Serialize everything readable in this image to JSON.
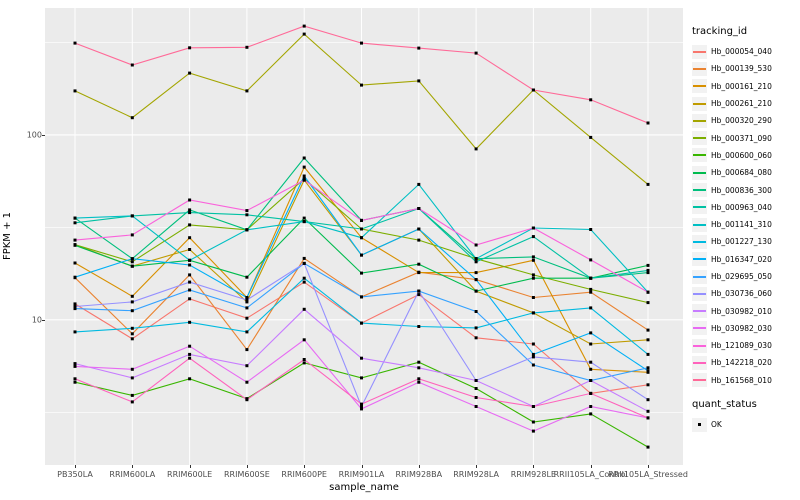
{
  "chart_data": {
    "type": "line",
    "title": "",
    "xlabel": "sample_name",
    "ylabel": "FPKM + 1",
    "y_scale": "log10",
    "ylim": [
      1.64,
      486
    ],
    "y_ticks": [
      {
        "value": 100,
        "label": "100"
      },
      {
        "value": 10,
        "label": "10"
      }
    ],
    "grid": {
      "major_y": [
        100,
        10
      ],
      "minor_y": [
        316.2,
        31.62,
        3.162
      ],
      "vertical_at_categories": true
    },
    "legend_title": "tracking_id",
    "legend_position": "right",
    "marker": {
      "shape": "square",
      "color": "#000000"
    },
    "quant_legend": {
      "title": "quant_status",
      "items": [
        {
          "label": "OK",
          "marker": "black-square"
        }
      ]
    },
    "categories": [
      "PB350LA",
      "RRIM600LA",
      "RRIM600LE",
      "RRIM600SE",
      "RRIM600PE",
      "RRIM901LA",
      "RRIM928BA",
      "RRIM928LA",
      "RRIM928LE",
      "RRII105LA_Control",
      "RRII105LA_Stressed"
    ],
    "series": [
      {
        "name": "Hb_000054_040",
        "color": "#F8766D",
        "values": [
          12.2,
          7.9,
          13,
          10.2,
          16,
          9.6,
          13.7,
          8.0,
          7.4,
          4.0,
          4.45
        ]
      },
      {
        "name": "Hb_000139_530",
        "color": "#EA8331",
        "values": [
          16.9,
          8.4,
          17.5,
          6.9,
          21.5,
          13.3,
          18.1,
          16.5,
          13.2,
          14.1,
          8.8
        ]
      },
      {
        "name": "Hb_000161_210",
        "color": "#D89000",
        "values": [
          20.3,
          13.4,
          27.8,
          13.2,
          67,
          27.8,
          18,
          18,
          21,
          5.4,
          5.2
        ]
      },
      {
        "name": "Hb_000261_210",
        "color": "#C09B00",
        "values": [
          25.5,
          19.5,
          24,
          12.5,
          57,
          22.4,
          31,
          14.3,
          10.9,
          7.4,
          7.8
        ]
      },
      {
        "name": "Hb_000320_290",
        "color": "#A3A500",
        "values": [
          173,
          124,
          216,
          173,
          351,
          186,
          196,
          84,
          175,
          97,
          54
        ]
      },
      {
        "name": "Hb_000371_090",
        "color": "#7CAE00",
        "values": [
          25.5,
          20.6,
          32.6,
          30.7,
          58,
          31,
          27,
          21.4,
          17.5,
          14.6,
          12.4
        ]
      },
      {
        "name": "Hb_000600_060",
        "color": "#39B600",
        "values": [
          4.6,
          3.9,
          4.8,
          3.75,
          5.85,
          4.85,
          5.9,
          4.25,
          2.8,
          3.1,
          2.05
        ]
      },
      {
        "name": "Hb_000684_080",
        "color": "#00BB4E",
        "values": [
          25.3,
          19.5,
          21,
          17,
          35.5,
          17.9,
          20,
          14.3,
          16.8,
          16.8,
          19.7
        ]
      },
      {
        "name": "Hb_000836_300",
        "color": "#00BF7D",
        "values": [
          35.5,
          21.4,
          39.3,
          30.7,
          75,
          34.5,
          40,
          21.4,
          21.9,
          16.8,
          18
        ]
      },
      {
        "name": "Hb_000963_040",
        "color": "#00C1A3",
        "values": [
          33.5,
          36.5,
          38,
          37,
          34,
          31,
          40,
          20.6,
          28.2,
          16.8,
          18.5
        ]
      },
      {
        "name": "Hb_001141_310",
        "color": "#00BFC4",
        "values": [
          35.5,
          36.5,
          21,
          30.7,
          34,
          27.8,
          54,
          21.4,
          31.4,
          30.8,
          14.1
        ]
      },
      {
        "name": "Hb_001227_130",
        "color": "#00BAE0",
        "values": [
          8.6,
          9,
          9.7,
          8.6,
          16.8,
          9.6,
          9.2,
          9.05,
          10.9,
          11.6,
          6.5
        ]
      },
      {
        "name": "Hb_016347_020",
        "color": "#00B0F6",
        "values": [
          17,
          21.4,
          19.8,
          13.2,
          60,
          22.4,
          31,
          16.5,
          6.5,
          8.5,
          5.3
        ]
      },
      {
        "name": "Hb_029695_050",
        "color": "#35A2FF",
        "values": [
          11.5,
          11.2,
          14.5,
          11.6,
          20.2,
          13.3,
          14.3,
          11.1,
          5.7,
          4.7,
          5.5
        ]
      },
      {
        "name": "Hb_030736_060",
        "color": "#9590FF",
        "values": [
          11.8,
          12.5,
          16,
          12.8,
          20.2,
          3.4,
          14.3,
          4.7,
          6.3,
          5.9,
          3.7
        ]
      },
      {
        "name": "Hb_030982_010",
        "color": "#C77CFF",
        "values": [
          5.8,
          4.85,
          6.5,
          5.65,
          11.4,
          6.2,
          5.5,
          4.7,
          3.4,
          4.7,
          3.2
        ]
      },
      {
        "name": "Hb_030982_030",
        "color": "#E76BF3",
        "values": [
          5.6,
          5.4,
          7.2,
          4.6,
          7.8,
          3.3,
          4.6,
          3.4,
          2.5,
          3.4,
          2.95
        ]
      },
      {
        "name": "Hb_121089_030",
        "color": "#FA62DB",
        "values": [
          27,
          28.8,
          44.5,
          39,
          57,
          34.5,
          40,
          25.4,
          31.4,
          21.1,
          14.1
        ]
      },
      {
        "name": "Hb_142218_020",
        "color": "#FF62BC",
        "values": [
          4.8,
          3.6,
          6.2,
          3.7,
          6.1,
          3.5,
          4.8,
          3.8,
          3.4,
          4.0,
          2.95
        ]
      },
      {
        "name": "Hb_161568_010",
        "color": "#FF6A98",
        "values": [
          314,
          239,
          296,
          298,
          388,
          314,
          295,
          277,
          175,
          155,
          116
        ]
      }
    ],
    "panel_background": "#EBEBEB",
    "gridline_color": "#FFFFFF",
    "tick_label_color": "#4D4D4D"
  }
}
